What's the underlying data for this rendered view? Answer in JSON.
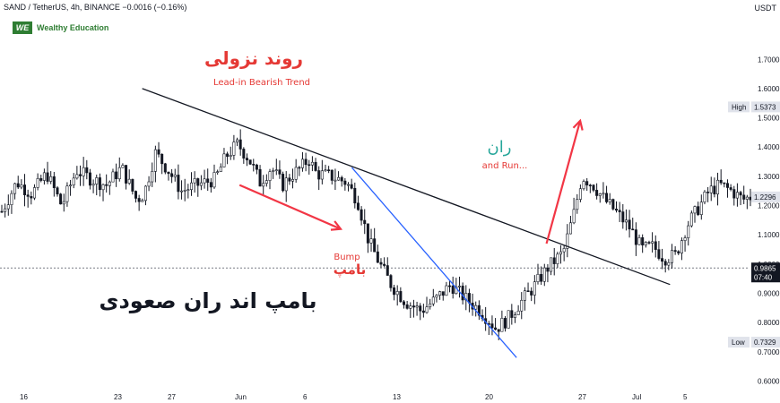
{
  "header": {
    "symbol_line": "SAND / TetherUS, 4h, BINANCE  −0.0016 (−0.16%)",
    "brand": "Wealthy Education",
    "brand_logo": "WE",
    "unit": "USDT"
  },
  "colors": {
    "candle": "#131722",
    "trendline": "#131722",
    "bump_line": "#2962ff",
    "arrow": "#f23645",
    "red_text": "#e53935",
    "teal_text": "#26a69a"
  },
  "chart_data": {
    "type": "candlestick",
    "ylim": [
      0.58,
      1.86
    ],
    "y_ticks": [
      "1.7000",
      "1.6000",
      "1.5000",
      "1.4000",
      "1.3000",
      "1.2000",
      "1.1000",
      "1.0000",
      "0.9000",
      "0.8000",
      "0.7000",
      "0.6000"
    ],
    "x_ticks": [
      "16",
      "23",
      "27",
      "Jun",
      "6",
      "13",
      "20",
      "27",
      "Jul",
      "5"
    ],
    "price_labels": {
      "high": {
        "label": "High",
        "value": "1.5373"
      },
      "last": {
        "value": "1.2296"
      },
      "current": {
        "value": "0.9865",
        "time": "07:40"
      },
      "low": {
        "label": "Low",
        "value": "0.7329"
      }
    },
    "x_range": [
      0,
      1
    ],
    "close_path": [
      [
        0.0,
        1.18
      ],
      [
        0.02,
        1.28
      ],
      [
        0.04,
        1.24
      ],
      [
        0.06,
        1.31
      ],
      [
        0.08,
        1.2
      ],
      [
        0.1,
        1.32
      ],
      [
        0.12,
        1.29
      ],
      [
        0.14,
        1.27
      ],
      [
        0.16,
        1.33
      ],
      [
        0.18,
        1.22
      ],
      [
        0.19,
        1.24
      ],
      [
        0.205,
        1.38
      ],
      [
        0.22,
        1.33
      ],
      [
        0.24,
        1.25
      ],
      [
        0.26,
        1.27
      ],
      [
        0.285,
        1.29
      ],
      [
        0.3,
        1.37
      ],
      [
        0.315,
        1.41
      ],
      [
        0.33,
        1.36
      ],
      [
        0.345,
        1.28
      ],
      [
        0.36,
        1.33
      ],
      [
        0.375,
        1.27
      ],
      [
        0.39,
        1.31
      ],
      [
        0.4,
        1.33
      ],
      [
        0.41,
        1.36
      ],
      [
        0.42,
        1.31
      ],
      [
        0.44,
        1.3
      ],
      [
        0.46,
        1.28
      ],
      [
        0.475,
        1.22
      ],
      [
        0.49,
        1.08
      ],
      [
        0.505,
        1.0
      ],
      [
        0.52,
        0.93
      ],
      [
        0.54,
        0.87
      ],
      [
        0.56,
        0.84
      ],
      [
        0.58,
        0.88
      ],
      [
        0.6,
        0.93
      ],
      [
        0.62,
        0.88
      ],
      [
        0.64,
        0.84
      ],
      [
        0.66,
        0.78
      ],
      [
        0.675,
        0.81
      ],
      [
        0.69,
        0.86
      ],
      [
        0.71,
        0.92
      ],
      [
        0.73,
        0.99
      ],
      [
        0.75,
        1.04
      ],
      [
        0.765,
        1.18
      ],
      [
        0.775,
        1.3
      ],
      [
        0.79,
        1.27
      ],
      [
        0.805,
        1.22
      ],
      [
        0.82,
        1.18
      ],
      [
        0.84,
        1.12
      ],
      [
        0.855,
        1.05
      ],
      [
        0.87,
        1.06
      ],
      [
        0.885,
        1.02
      ],
      [
        0.9,
        1.03
      ],
      [
        0.915,
        1.13
      ],
      [
        0.93,
        1.19
      ],
      [
        0.945,
        1.25
      ],
      [
        0.96,
        1.27
      ],
      [
        0.975,
        1.25
      ],
      [
        0.99,
        1.22
      ],
      [
        1.0,
        1.23
      ]
    ],
    "series": [
      {
        "name": "Lead-in Bearish Trend",
        "kind": "trendline",
        "points": [
          [
            0.19,
            1.6
          ],
          [
            0.895,
            0.93
          ]
        ]
      },
      {
        "name": "Bump",
        "kind": "trendline",
        "points": [
          [
            0.47,
            1.33
          ],
          [
            0.69,
            0.68
          ]
        ]
      }
    ],
    "annotations": [
      {
        "text": "روند نزولی",
        "style": "red-large"
      },
      {
        "text": "Lead-in Bearish Trend",
        "style": "red-small"
      },
      {
        "text": "ران",
        "style": "teal-large"
      },
      {
        "text": "and Run...",
        "style": "red-small"
      },
      {
        "text": "Bump",
        "style": "red-small"
      },
      {
        "text": "بامپ",
        "style": "red-medium"
      },
      {
        "text": "بامپ اند ران صعودی",
        "style": "black-large"
      }
    ],
    "arrows": [
      {
        "name": "bump-arrow",
        "from": [
          0.32,
          1.27
        ],
        "to": [
          0.455,
          1.12
        ]
      },
      {
        "name": "run-arrow",
        "from": [
          0.73,
          1.07
        ],
        "to": [
          0.775,
          1.49
        ]
      }
    ]
  }
}
